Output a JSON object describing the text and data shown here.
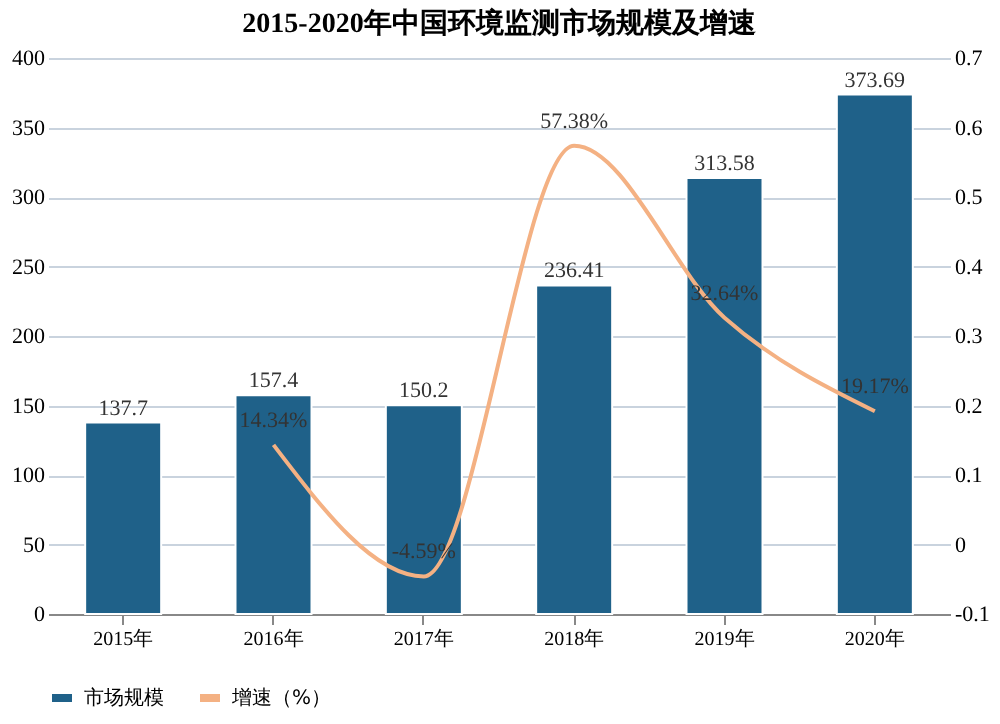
{
  "chart_data": {
    "type": "bar",
    "title": "2015-2020年中国环境监测市场规模及增速",
    "categories": [
      "2015年",
      "2016年",
      "2017年",
      "2018年",
      "2019年",
      "2020年"
    ],
    "series": [
      {
        "name": "市场规模",
        "color": "#1f6189",
        "values": [
          137.7,
          157.4,
          150.2,
          236.41,
          313.58,
          373.69
        ],
        "value_labels": [
          "137.7",
          "157.4",
          "150.2",
          "236.41",
          "313.58",
          "373.69"
        ]
      },
      {
        "name": "增速（%）",
        "type": "line",
        "axis": "y2",
        "color": "#f4b183",
        "values": [
          null,
          0.1434,
          -0.0459,
          0.5738,
          0.3264,
          0.1917
        ],
        "value_labels": [
          null,
          "14.34%",
          "-4.59%",
          "57.38%",
          "32.64%",
          "19.17%"
        ]
      }
    ],
    "ylim": [
      0,
      400
    ],
    "yticks": [
      0,
      50,
      100,
      150,
      200,
      250,
      300,
      350,
      400
    ],
    "y2lim": [
      -0.1,
      0.7
    ],
    "y2ticks": [
      -0.1,
      0,
      0.1,
      0.2,
      0.3,
      0.4,
      0.5,
      0.6,
      0.7
    ],
    "grid": "y",
    "legend": "bottom"
  }
}
